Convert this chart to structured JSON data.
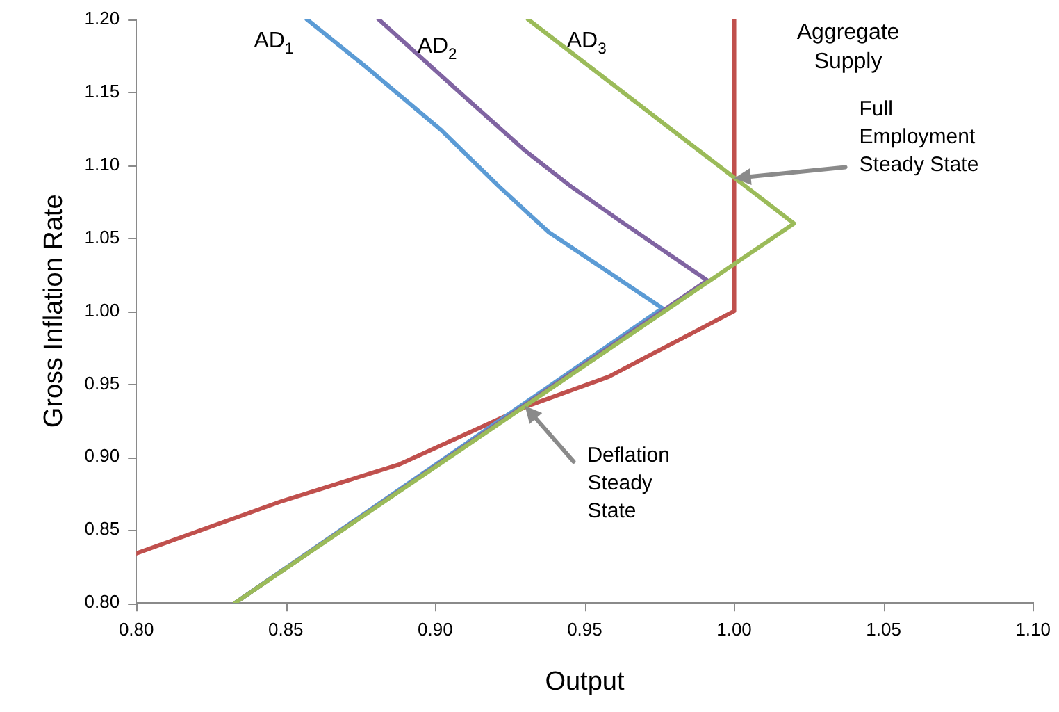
{
  "chart_data": {
    "type": "line",
    "xlabel": "Output",
    "ylabel": "Gross Inflation Rate",
    "series": [
      {
        "name": "Aggregate Supply",
        "color": "#c0504d",
        "x": [
          0.8,
          0.849,
          0.888,
          0.931,
          0.958,
          1.0,
          1.0
        ],
        "values": [
          0.834,
          0.87,
          0.895,
          0.935,
          0.955,
          1.0,
          1.2
        ]
      },
      {
        "name": "AD$_{1}$",
        "color": "#5b9bd5",
        "x": [
          0.857,
          0.877,
          0.902,
          0.921,
          0.938,
          0.976,
          0.833
        ],
        "values": [
          1.2,
          1.167,
          1.124,
          1.086,
          1.054,
          1.002,
          0.8
        ]
      },
      {
        "name": "AD$_{2}$",
        "color": "#8064a2",
        "x": [
          0.881,
          0.907,
          0.93,
          0.945,
          0.961,
          0.991,
          0.833
        ],
        "values": [
          1.2,
          1.152,
          1.11,
          1.086,
          1.063,
          1.021,
          0.8
        ]
      },
      {
        "name": "AD$_{3}$",
        "color": "#9bbb59",
        "x": [
          0.931,
          1.02,
          0.833
        ],
        "values": [
          1.2,
          1.06,
          0.8
        ]
      }
    ],
    "xlim": [
      0.8,
      1.1
    ],
    "ylim": [
      0.8,
      1.2
    ],
    "xticks": [
      {
        "value": 0.8,
        "label": "0.80"
      },
      {
        "value": 0.85,
        "label": "0.85"
      },
      {
        "value": 0.9,
        "label": "0.90"
      },
      {
        "value": 0.95,
        "label": "0.95"
      },
      {
        "value": 1.0,
        "label": "1.00"
      },
      {
        "value": 1.05,
        "label": "1.05"
      },
      {
        "value": 1.1,
        "label": "1.10"
      }
    ],
    "yticks": [
      {
        "value": 0.8,
        "label": "0.80"
      },
      {
        "value": 0.85,
        "label": "0.85"
      },
      {
        "value": 0.9,
        "label": "0.90"
      },
      {
        "value": 0.95,
        "label": "0.95"
      },
      {
        "value": 1.0,
        "label": "1.00"
      },
      {
        "value": 1.05,
        "label": "1.05"
      },
      {
        "value": 1.1,
        "label": "1.10"
      },
      {
        "value": 1.15,
        "label": "1.15"
      },
      {
        "value": 1.2,
        "label": "1.20"
      }
    ],
    "annotations": [
      {
        "text": "Full Employment Steady State",
        "x": 1.0,
        "y": 1.091
      },
      {
        "text": "Deflation Steady State",
        "x": 0.93,
        "y": 0.935
      }
    ],
    "grid": false,
    "legend": false,
    "marker": "none",
    "line_style": "solid"
  }
}
